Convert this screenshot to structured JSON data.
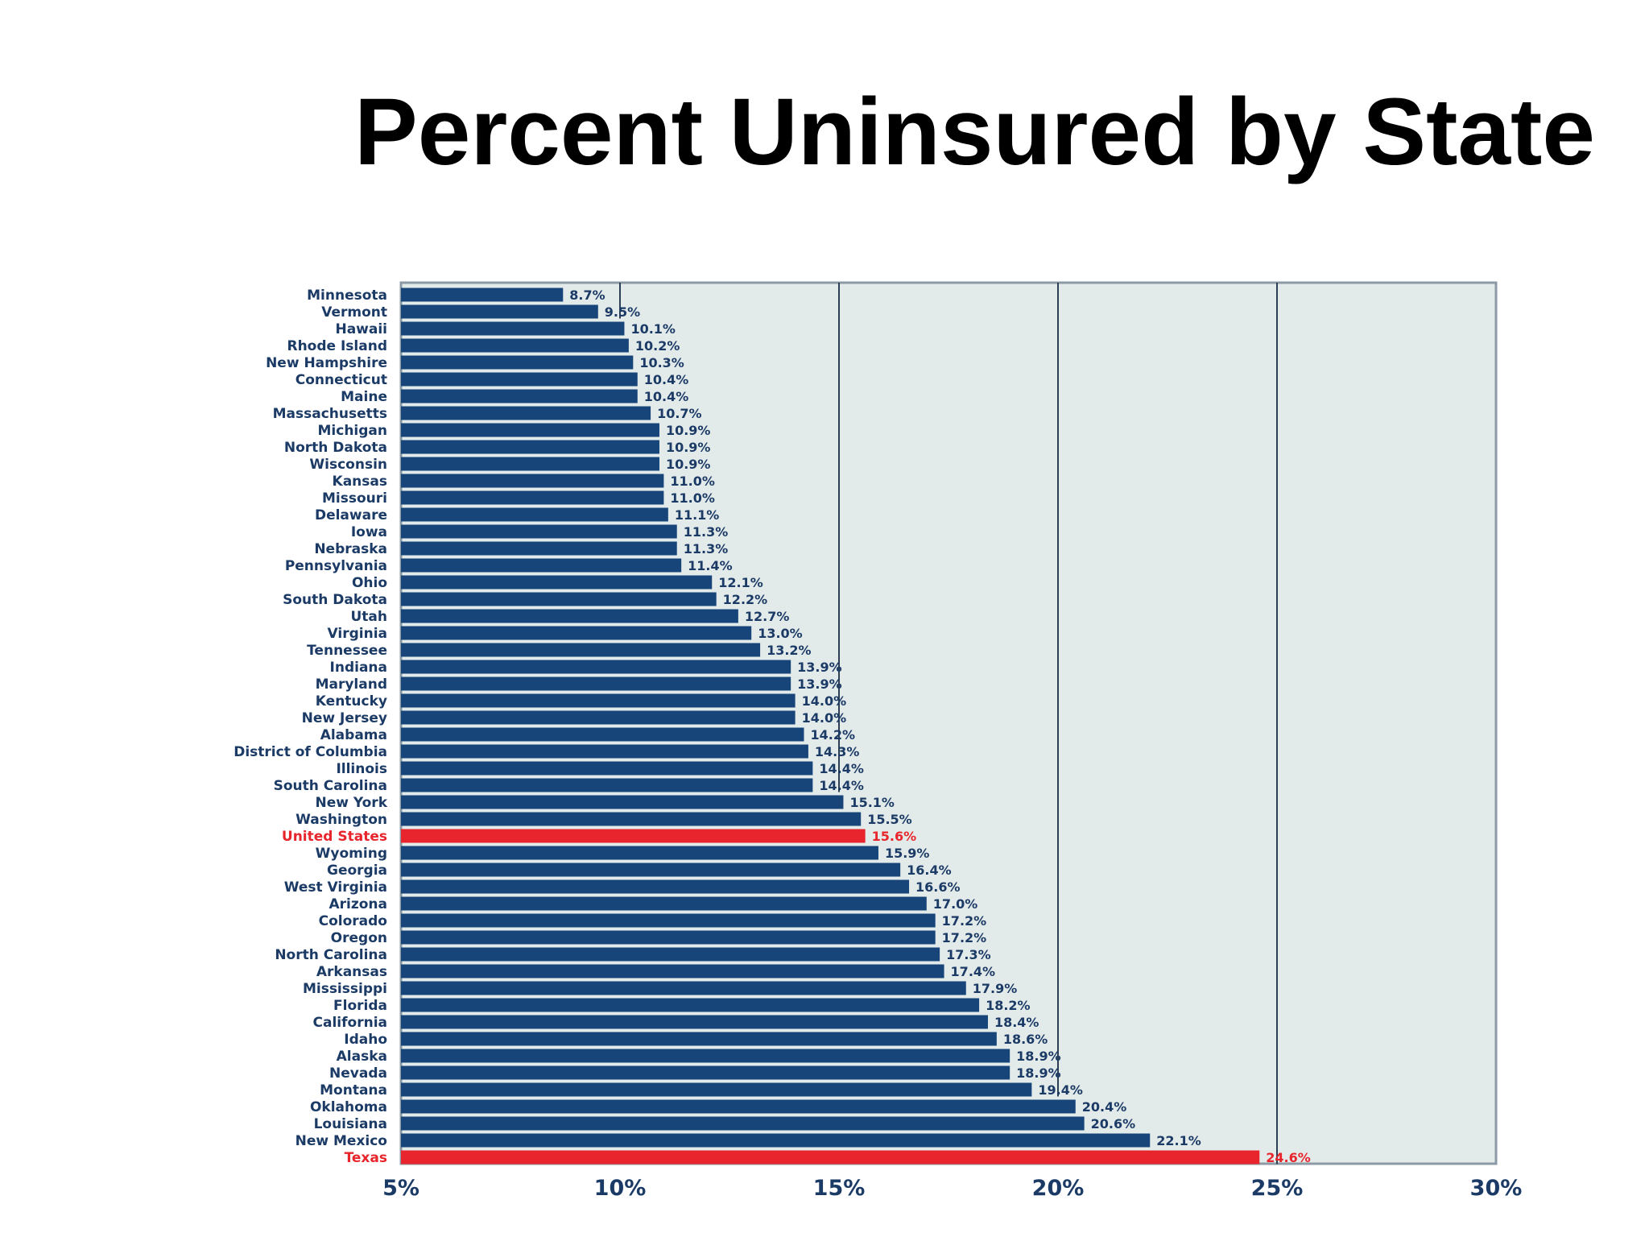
{
  "title": "Percent Uninsured by State",
  "colors": {
    "bar": "#17457a",
    "highlight": "#e8252c",
    "label": "#1b3b66",
    "plot_bg": "#e3eaea",
    "grid": "#2c3f55",
    "frame": "#8b9aa4",
    "text": "#000000"
  },
  "chart_data": {
    "type": "bar",
    "orientation": "horizontal",
    "title": "Percent Uninsured by State",
    "xlabel": "",
    "ylabel": "",
    "xlim": [
      5,
      30
    ],
    "xticks": [
      5,
      10,
      15,
      20,
      25,
      30
    ],
    "xtick_labels": [
      "5%",
      "10%",
      "15%",
      "20%",
      "25%",
      "30%"
    ],
    "grid": true,
    "categories": [
      "Minnesota",
      "Vermont",
      "Hawaii",
      "Rhode Island",
      "New Hampshire",
      "Connecticut",
      "Maine",
      "Massachusetts",
      "Michigan",
      "North Dakota",
      "Wisconsin",
      "Kansas",
      "Missouri",
      "Delaware",
      "Iowa",
      "Nebraska",
      "Pennsylvania",
      "Ohio",
      "South Dakota",
      "Utah",
      "Virginia",
      "Tennessee",
      "Indiana",
      "Maryland",
      "Kentucky",
      "New Jersey",
      "Alabama",
      "District of Columbia",
      "Illinois",
      "South Carolina",
      "New York",
      "Washington",
      "United States",
      "Wyoming",
      "Georgia",
      "West Virginia",
      "Arizona",
      "Colorado",
      "Oregon",
      "North Carolina",
      "Arkansas",
      "Mississippi",
      "Florida",
      "California",
      "Idaho",
      "Alaska",
      "Nevada",
      "Montana",
      "Oklahoma",
      "Louisiana",
      "New Mexico",
      "Texas"
    ],
    "values": [
      8.7,
      9.5,
      10.1,
      10.2,
      10.3,
      10.4,
      10.4,
      10.7,
      10.9,
      10.9,
      10.9,
      11.0,
      11.0,
      11.1,
      11.3,
      11.3,
      11.4,
      12.1,
      12.2,
      12.7,
      13.0,
      13.2,
      13.9,
      13.9,
      14.0,
      14.0,
      14.2,
      14.3,
      14.4,
      14.4,
      15.1,
      15.5,
      15.6,
      15.9,
      16.4,
      16.6,
      17.0,
      17.2,
      17.2,
      17.3,
      17.4,
      17.9,
      18.2,
      18.4,
      18.6,
      18.9,
      18.9,
      19.4,
      20.4,
      20.6,
      22.1,
      24.6
    ],
    "value_labels": [
      "8.7%",
      "9.5%",
      "10.1%",
      "10.2%",
      "10.3%",
      "10.4%",
      "10.4%",
      "10.7%",
      "10.9%",
      "10.9%",
      "10.9%",
      "11.0%",
      "11.0%",
      "11.1%",
      "11.3%",
      "11.3%",
      "11.4%",
      "12.1%",
      "12.2%",
      "12.7%",
      "13.0%",
      "13.2%",
      "13.9%",
      "13.9%",
      "14.0%",
      "14.0%",
      "14.2%",
      "14.3%",
      "14.4%",
      "14.4%",
      "15.1%",
      "15.5%",
      "15.6%",
      "15.9%",
      "16.4%",
      "16.6%",
      "17.0%",
      "17.2%",
      "17.2%",
      "17.3%",
      "17.4%",
      "17.9%",
      "18.2%",
      "18.4%",
      "18.6%",
      "18.9%",
      "18.9%",
      "19.4%",
      "20.4%",
      "20.6%",
      "22.1%",
      "24.6%"
    ],
    "highlighted": [
      "United States",
      "Texas"
    ]
  }
}
